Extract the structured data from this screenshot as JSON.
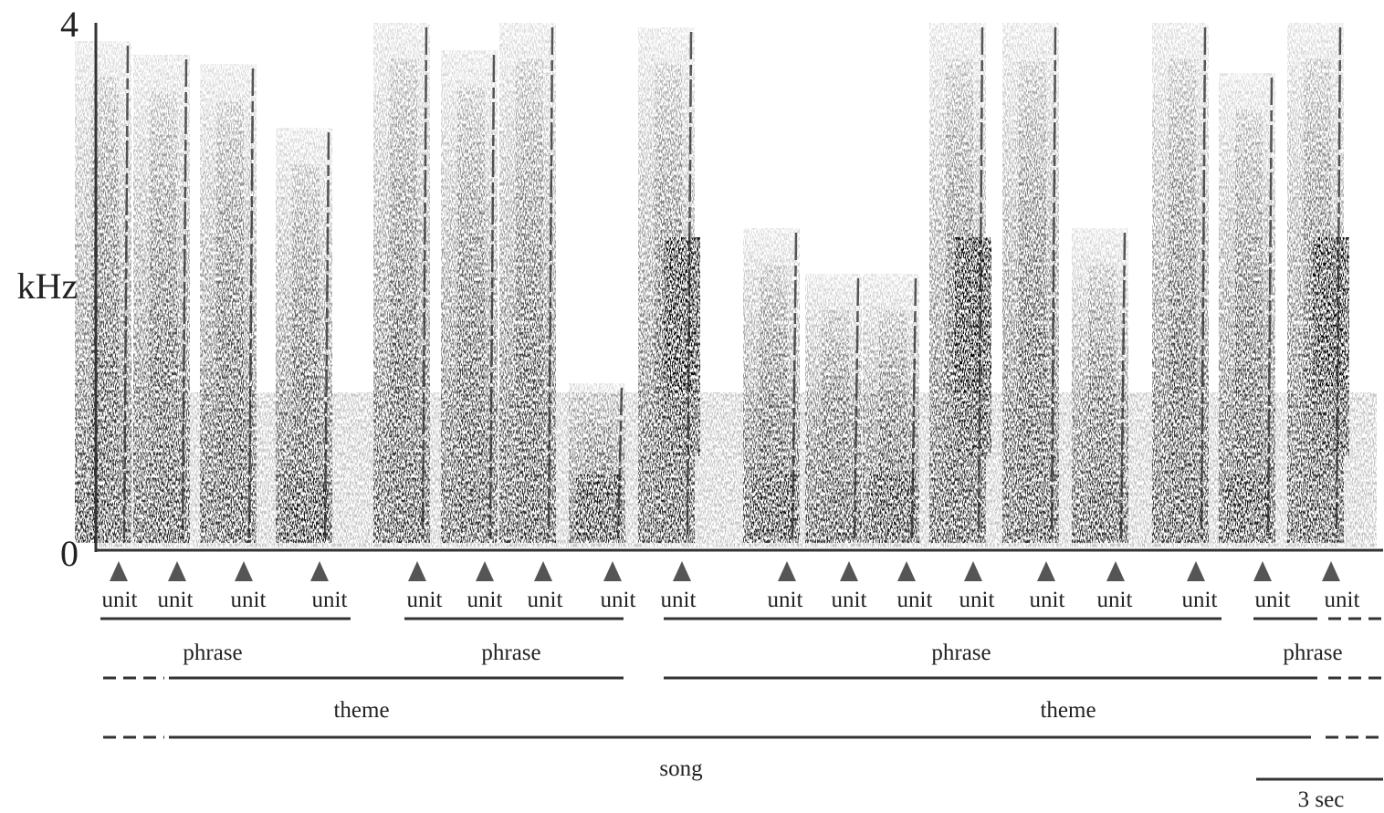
{
  "axis": {
    "top": "4",
    "unit": "kHz",
    "bottom": "0"
  },
  "units": [
    "unit",
    "unit",
    "unit",
    "unit",
    "unit",
    "unit",
    "unit",
    "unit",
    "unit",
    "unit",
    "unit",
    "unit",
    "unit",
    "unit",
    "unit",
    "unit",
    "unit",
    "unit"
  ],
  "phrases": [
    "phrase",
    "phrase",
    "phrase",
    "phrase"
  ],
  "themes": [
    "theme",
    "theme"
  ],
  "song": "song",
  "scale": "3 sec"
}
